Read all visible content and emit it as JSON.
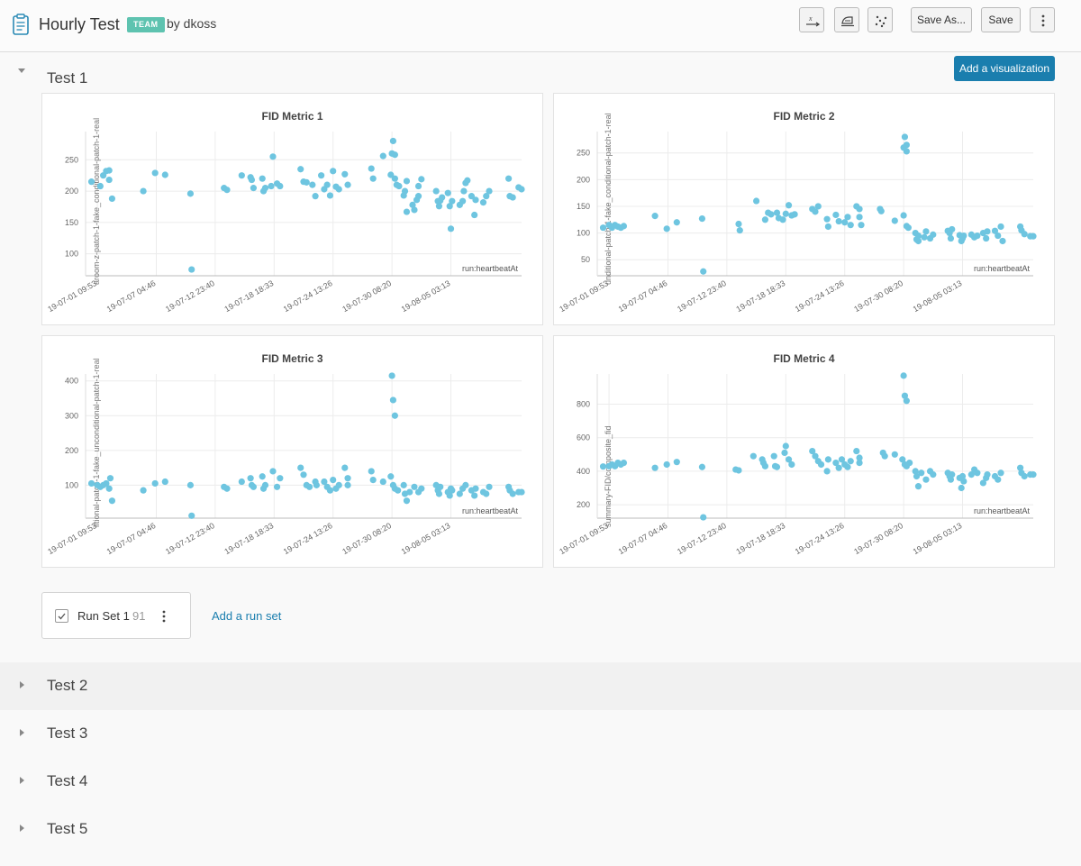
{
  "header": {
    "title": "Hourly Test",
    "badge": "TEAM",
    "byline": "by dkoss",
    "save_as_label": "Save As...",
    "save_label": "Save"
  },
  "sections": [
    {
      "title": "Test 1",
      "expanded": true
    },
    {
      "title": "Test 2",
      "expanded": false
    },
    {
      "title": "Test 3",
      "expanded": false
    },
    {
      "title": "Test 4",
      "expanded": false
    },
    {
      "title": "Test 5",
      "expanded": false
    }
  ],
  "add_visualization_label": "Add a visualization",
  "runset": {
    "name": "Run Set 1",
    "count": "91",
    "add_label": "Add a run set"
  },
  "colors": {
    "point": "#6ec5e0",
    "accent": "#1a7eae",
    "badge": "#5ec3b0"
  },
  "chart_data": [
    {
      "type": "scatter",
      "title": "FID Metric 1",
      "ylabel": "aroom-z-patch-1-fake_conditional-patch-1-real",
      "xlabel": "run:heartbeatAt",
      "x_ticks": [
        "19-07-01 09:53",
        "19-07-07 04:46",
        "19-07-12 23:40",
        "19-07-18 18:33",
        "19-07-24 13:26",
        "19-07-30 08:20",
        "19-08-05 03:13"
      ],
      "y_ticks": [
        100,
        150,
        200,
        250
      ],
      "ylim": [
        65,
        295
      ],
      "xlim": [
        -0.2,
        7.2
      ],
      "points": [
        [
          -0.1,
          215
        ],
        [
          0.05,
          208
        ],
        [
          0.1,
          225
        ],
        [
          0.15,
          232
        ],
        [
          0.2,
          233
        ],
        [
          0.2,
          218
        ],
        [
          0.25,
          188
        ],
        [
          0.78,
          200
        ],
        [
          0.98,
          229
        ],
        [
          1.15,
          226
        ],
        [
          1.58,
          196
        ],
        [
          1.6,
          75
        ],
        [
          2.15,
          205
        ],
        [
          2.2,
          202
        ],
        [
          2.45,
          225
        ],
        [
          2.6,
          222
        ],
        [
          2.62,
          218
        ],
        [
          2.65,
          205
        ],
        [
          2.8,
          220
        ],
        [
          2.82,
          200
        ],
        [
          2.85,
          205
        ],
        [
          2.95,
          208
        ],
        [
          3.05,
          212
        ],
        [
          3.1,
          208
        ],
        [
          2.98,
          255
        ],
        [
          3.45,
          235
        ],
        [
          3.5,
          215
        ],
        [
          3.55,
          214
        ],
        [
          3.65,
          210
        ],
        [
          3.7,
          192
        ],
        [
          3.8,
          225
        ],
        [
          3.85,
          203
        ],
        [
          3.9,
          210
        ],
        [
          3.95,
          193
        ],
        [
          4.0,
          232
        ],
        [
          4.05,
          207
        ],
        [
          4.1,
          203
        ],
        [
          4.2,
          227
        ],
        [
          4.25,
          210
        ],
        [
          4.65,
          236
        ],
        [
          4.68,
          220
        ],
        [
          4.85,
          256
        ],
        [
          5.0,
          260
        ],
        [
          5.02,
          280
        ],
        [
          5.05,
          258
        ],
        [
          4.98,
          226
        ],
        [
          5.05,
          220
        ],
        [
          5.08,
          210
        ],
        [
          5.12,
          208
        ],
        [
          5.2,
          193
        ],
        [
          5.22,
          200
        ],
        [
          5.25,
          216
        ],
        [
          5.25,
          167
        ],
        [
          5.35,
          178
        ],
        [
          5.38,
          170
        ],
        [
          5.42,
          186
        ],
        [
          5.45,
          192
        ],
        [
          5.45,
          208
        ],
        [
          5.5,
          219
        ],
        [
          5.75,
          200
        ],
        [
          5.78,
          184
        ],
        [
          5.8,
          176
        ],
        [
          5.82,
          185
        ],
        [
          5.85,
          190
        ],
        [
          5.95,
          197
        ],
        [
          5.98,
          176
        ],
        [
          6.0,
          140
        ],
        [
          6.02,
          184
        ],
        [
          6.15,
          178
        ],
        [
          6.2,
          184
        ],
        [
          6.22,
          200
        ],
        [
          6.25,
          213
        ],
        [
          6.28,
          217
        ],
        [
          6.35,
          192
        ],
        [
          6.4,
          162
        ],
        [
          6.42,
          186
        ],
        [
          6.55,
          182
        ],
        [
          6.6,
          192
        ],
        [
          6.65,
          200
        ],
        [
          6.98,
          220
        ],
        [
          7.0,
          192
        ],
        [
          7.05,
          190
        ],
        [
          7.15,
          206
        ],
        [
          7.2,
          203
        ]
      ]
    },
    {
      "type": "scatter",
      "title": "FID Metric 2",
      "ylabel": "unditional-patch-1-fake_conditional-patch-1-real",
      "xlabel": "run:heartbeatAt",
      "x_ticks": [
        "19-07-01 09:53",
        "19-07-07 04:46",
        "19-07-12 23:40",
        "19-07-18 18:33",
        "19-07-24 13:26",
        "19-07-30 08:20",
        "19-08-05 03:13"
      ],
      "y_ticks": [
        50,
        100,
        150,
        200,
        250
      ],
      "ylim": [
        20,
        290
      ],
      "xlim": [
        -0.2,
        7.2
      ],
      "points": [
        [
          -0.1,
          110
        ],
        [
          0.0,
          115
        ],
        [
          0.05,
          110
        ],
        [
          0.1,
          115
        ],
        [
          0.15,
          112
        ],
        [
          0.2,
          110
        ],
        [
          0.25,
          113
        ],
        [
          0.78,
          132
        ],
        [
          0.98,
          108
        ],
        [
          1.15,
          120
        ],
        [
          1.58,
          127
        ],
        [
          1.6,
          28
        ],
        [
          2.2,
          117
        ],
        [
          2.22,
          105
        ],
        [
          2.5,
          160
        ],
        [
          2.65,
          125
        ],
        [
          2.7,
          138
        ],
        [
          2.75,
          135
        ],
        [
          2.85,
          138
        ],
        [
          2.88,
          128
        ],
        [
          2.95,
          125
        ],
        [
          3.0,
          136
        ],
        [
          3.05,
          152
        ],
        [
          3.1,
          133
        ],
        [
          3.15,
          135
        ],
        [
          3.45,
          145
        ],
        [
          3.5,
          140
        ],
        [
          3.55,
          150
        ],
        [
          3.7,
          126
        ],
        [
          3.72,
          112
        ],
        [
          3.85,
          134
        ],
        [
          3.9,
          122
        ],
        [
          4.0,
          120
        ],
        [
          4.05,
          130
        ],
        [
          4.1,
          115
        ],
        [
          4.2,
          150
        ],
        [
          4.25,
          145
        ],
        [
          4.25,
          130
        ],
        [
          4.28,
          115
        ],
        [
          4.6,
          145
        ],
        [
          4.62,
          141
        ],
        [
          4.85,
          123
        ],
        [
          5.0,
          260
        ],
        [
          5.02,
          280
        ],
        [
          5.05,
          253
        ],
        [
          5.05,
          265
        ],
        [
          5.0,
          133
        ],
        [
          5.05,
          113
        ],
        [
          5.08,
          110
        ],
        [
          5.2,
          100
        ],
        [
          5.22,
          88
        ],
        [
          5.25,
          85
        ],
        [
          5.25,
          95
        ],
        [
          5.35,
          92
        ],
        [
          5.38,
          103
        ],
        [
          5.45,
          90
        ],
        [
          5.5,
          97
        ],
        [
          5.75,
          104
        ],
        [
          5.78,
          100
        ],
        [
          5.8,
          90
        ],
        [
          5.82,
          107
        ],
        [
          5.95,
          96
        ],
        [
          5.98,
          85
        ],
        [
          6.0,
          90
        ],
        [
          6.02,
          95
        ],
        [
          6.15,
          97
        ],
        [
          6.2,
          92
        ],
        [
          6.25,
          95
        ],
        [
          6.35,
          100
        ],
        [
          6.4,
          90
        ],
        [
          6.42,
          103
        ],
        [
          6.55,
          104
        ],
        [
          6.6,
          95
        ],
        [
          6.65,
          112
        ],
        [
          6.68,
          85
        ],
        [
          6.98,
          112
        ],
        [
          7.0,
          105
        ],
        [
          7.05,
          98
        ],
        [
          7.15,
          94
        ],
        [
          7.2,
          94
        ]
      ]
    },
    {
      "type": "scatter",
      "title": "FID Metric 3",
      "ylabel": "litional-patch-1-fake_unconditional-patch-1-real",
      "xlabel": "run:heartbeatAt",
      "x_ticks": [
        "19-07-01 09:53",
        "19-07-07 04:46",
        "19-07-12 23:40",
        "19-07-18 18:33",
        "19-07-24 13:26",
        "19-07-30 08:20",
        "19-08-05 03:13"
      ],
      "y_ticks": [
        100,
        200,
        300,
        400
      ],
      "ylim": [
        5,
        420
      ],
      "xlim": [
        -0.2,
        7.2
      ],
      "points": [
        [
          -0.1,
          105
        ],
        [
          0.0,
          100
        ],
        [
          0.05,
          95
        ],
        [
          0.1,
          100
        ],
        [
          0.15,
          105
        ],
        [
          0.2,
          90
        ],
        [
          0.22,
          120
        ],
        [
          0.25,
          55
        ],
        [
          0.78,
          85
        ],
        [
          0.98,
          105
        ],
        [
          1.15,
          110
        ],
        [
          1.58,
          100
        ],
        [
          1.6,
          12
        ],
        [
          2.15,
          95
        ],
        [
          2.2,
          90
        ],
        [
          2.45,
          110
        ],
        [
          2.6,
          120
        ],
        [
          2.62,
          100
        ],
        [
          2.65,
          95
        ],
        [
          2.8,
          125
        ],
        [
          2.82,
          90
        ],
        [
          2.85,
          100
        ],
        [
          2.98,
          140
        ],
        [
          3.05,
          95
        ],
        [
          3.1,
          120
        ],
        [
          3.45,
          150
        ],
        [
          3.5,
          130
        ],
        [
          3.55,
          100
        ],
        [
          3.6,
          95
        ],
        [
          3.7,
          110
        ],
        [
          3.72,
          100
        ],
        [
          3.85,
          110
        ],
        [
          3.9,
          95
        ],
        [
          3.95,
          85
        ],
        [
          4.0,
          115
        ],
        [
          4.05,
          90
        ],
        [
          4.1,
          100
        ],
        [
          4.2,
          150
        ],
        [
          4.25,
          120
        ],
        [
          4.25,
          100
        ],
        [
          4.65,
          140
        ],
        [
          4.68,
          115
        ],
        [
          4.85,
          110
        ],
        [
          5.0,
          415
        ],
        [
          5.02,
          345
        ],
        [
          5.05,
          300
        ],
        [
          4.98,
          125
        ],
        [
          5.02,
          100
        ],
        [
          5.05,
          90
        ],
        [
          5.1,
          85
        ],
        [
          5.2,
          100
        ],
        [
          5.22,
          75
        ],
        [
          5.25,
          55
        ],
        [
          5.3,
          80
        ],
        [
          5.38,
          95
        ],
        [
          5.45,
          80
        ],
        [
          5.5,
          90
        ],
        [
          5.75,
          100
        ],
        [
          5.78,
          85
        ],
        [
          5.8,
          75
        ],
        [
          5.82,
          95
        ],
        [
          5.95,
          80
        ],
        [
          5.98,
          70
        ],
        [
          6.0,
          90
        ],
        [
          6.02,
          85
        ],
        [
          6.15,
          75
        ],
        [
          6.2,
          90
        ],
        [
          6.25,
          100
        ],
        [
          6.35,
          85
        ],
        [
          6.4,
          70
        ],
        [
          6.42,
          90
        ],
        [
          6.55,
          80
        ],
        [
          6.6,
          75
        ],
        [
          6.65,
          95
        ],
        [
          6.98,
          95
        ],
        [
          7.0,
          85
        ],
        [
          7.05,
          75
        ],
        [
          7.15,
          80
        ],
        [
          7.2,
          80
        ]
      ]
    },
    {
      "type": "scatter",
      "title": "FID Metric 4",
      "ylabel": "summary-FID/composite_fid",
      "xlabel": "run:heartbeatAt",
      "x_ticks": [
        "19-07-01 09:53",
        "19-07-07 04:46",
        "19-07-12 23:40",
        "19-07-18 18:33",
        "19-07-24 13:26",
        "19-07-30 08:20",
        "19-08-05 03:13"
      ],
      "y_ticks": [
        200,
        400,
        600,
        800
      ],
      "ylim": [
        120,
        980
      ],
      "xlim": [
        -0.2,
        7.2
      ],
      "points": [
        [
          -0.1,
          428
        ],
        [
          0.0,
          430
        ],
        [
          0.05,
          440
        ],
        [
          0.1,
          430
        ],
        [
          0.15,
          450
        ],
        [
          0.2,
          440
        ],
        [
          0.25,
          450
        ],
        [
          0.78,
          420
        ],
        [
          0.98,
          440
        ],
        [
          1.15,
          455
        ],
        [
          1.58,
          425
        ],
        [
          1.6,
          125
        ],
        [
          2.15,
          410
        ],
        [
          2.2,
          405
        ],
        [
          2.45,
          490
        ],
        [
          2.6,
          470
        ],
        [
          2.62,
          450
        ],
        [
          2.65,
          430
        ],
        [
          2.8,
          490
        ],
        [
          2.82,
          430
        ],
        [
          2.85,
          425
        ],
        [
          2.98,
          510
        ],
        [
          3.0,
          550
        ],
        [
          3.05,
          470
        ],
        [
          3.1,
          440
        ],
        [
          3.45,
          520
        ],
        [
          3.5,
          490
        ],
        [
          3.55,
          460
        ],
        [
          3.6,
          440
        ],
        [
          3.7,
          400
        ],
        [
          3.72,
          470
        ],
        [
          3.85,
          450
        ],
        [
          3.9,
          420
        ],
        [
          3.95,
          470
        ],
        [
          4.0,
          440
        ],
        [
          4.05,
          425
        ],
        [
          4.1,
          460
        ],
        [
          4.2,
          520
        ],
        [
          4.25,
          480
        ],
        [
          4.25,
          450
        ],
        [
          4.65,
          510
        ],
        [
          4.68,
          490
        ],
        [
          4.85,
          500
        ],
        [
          5.0,
          970
        ],
        [
          5.02,
          850
        ],
        [
          5.05,
          820
        ],
        [
          4.98,
          470
        ],
        [
          5.02,
          440
        ],
        [
          5.05,
          430
        ],
        [
          5.1,
          450
        ],
        [
          5.2,
          400
        ],
        [
          5.22,
          370
        ],
        [
          5.25,
          310
        ],
        [
          5.3,
          390
        ],
        [
          5.38,
          350
        ],
        [
          5.45,
          400
        ],
        [
          5.5,
          380
        ],
        [
          5.75,
          390
        ],
        [
          5.78,
          370
        ],
        [
          5.8,
          350
        ],
        [
          5.82,
          380
        ],
        [
          5.95,
          360
        ],
        [
          5.98,
          300
        ],
        [
          6.0,
          370
        ],
        [
          6.02,
          340
        ],
        [
          6.15,
          380
        ],
        [
          6.2,
          410
        ],
        [
          6.25,
          390
        ],
        [
          6.35,
          330
        ],
        [
          6.4,
          360
        ],
        [
          6.42,
          380
        ],
        [
          6.55,
          370
        ],
        [
          6.6,
          350
        ],
        [
          6.65,
          390
        ],
        [
          6.98,
          420
        ],
        [
          7.0,
          390
        ],
        [
          7.05,
          370
        ],
        [
          7.15,
          380
        ],
        [
          7.2,
          380
        ]
      ]
    }
  ]
}
